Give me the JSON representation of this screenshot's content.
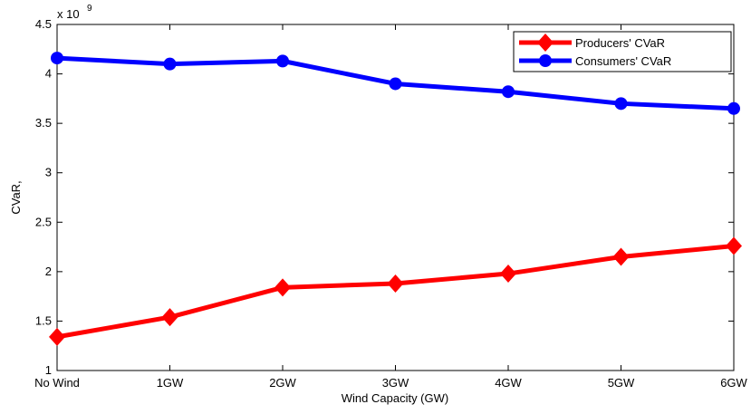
{
  "chart_data": {
    "type": "line",
    "x_label": "Wind Capacity (GW)",
    "y_label": "CVaR,",
    "y_multiplier": {
      "base": "x 10",
      "exponent": "9"
    },
    "categories": [
      "No Wind",
      "1GW",
      "2GW",
      "3GW",
      "4GW",
      "5GW",
      "6GW"
    ],
    "series": [
      {
        "name": "Producers' CVaR",
        "color": "#ff0000",
        "marker": "diamond",
        "values": [
          1.34,
          1.54,
          1.84,
          1.88,
          1.98,
          2.15,
          2.26
        ]
      },
      {
        "name": "Consumers' CVaR",
        "color": "#0000ff",
        "marker": "circle",
        "values": [
          4.16,
          4.1,
          4.13,
          3.9,
          3.82,
          3.7,
          3.65
        ]
      }
    ],
    "ylim": [
      1,
      4.5
    ],
    "yticks": [
      1,
      1.5,
      2,
      2.5,
      3,
      3.5,
      4,
      4.5
    ],
    "grid": false,
    "legend": "top-right"
  }
}
